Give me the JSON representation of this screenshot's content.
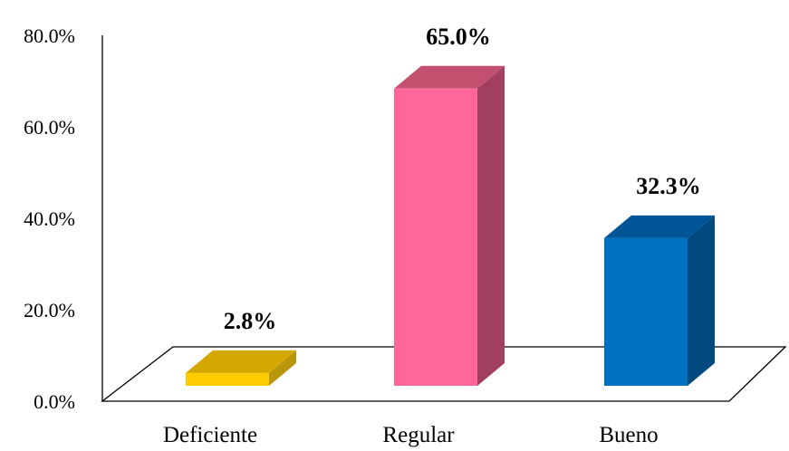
{
  "chart_data": {
    "type": "bar",
    "categories": [
      "Deficiente",
      "Regular",
      "Bueno"
    ],
    "values": [
      2.8,
      65.0,
      32.3
    ],
    "data_labels": [
      "2.8%",
      "65.0%",
      "32.3%"
    ],
    "title": "",
    "xlabel": "",
    "ylabel": "",
    "ylim": [
      0,
      80
    ],
    "yticks": [
      "0.0%",
      "20.0%",
      "40.0%",
      "60.0%",
      "80.0%"
    ],
    "grid": false,
    "style": "3d",
    "colors": {
      "front": [
        "#FFCC00",
        "#FF6699",
        "#0070C0"
      ],
      "side": [
        "#B8950A",
        "#A0405E",
        "#004A80"
      ],
      "top": [
        "#D4A800",
        "#C2506F",
        "#005596"
      ]
    }
  }
}
